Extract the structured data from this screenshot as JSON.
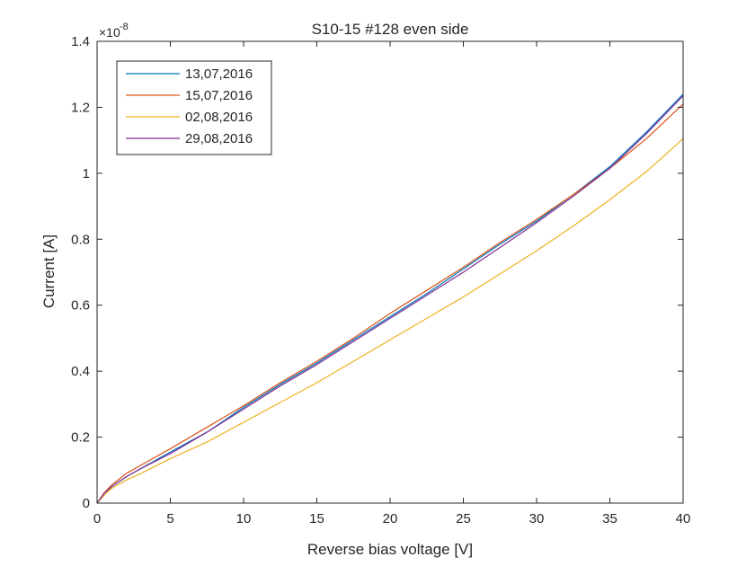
{
  "chart_data": {
    "type": "line",
    "title": "S10-15 #128 even side",
    "xlabel": "Reverse bias voltage [V]",
    "ylabel": "Current [A]",
    "y_exponent_base": "×10",
    "y_exponent_power": "-8",
    "y_scale_factor": 1e-08,
    "xlim": [
      0,
      40
    ],
    "ylim": [
      0,
      1.4
    ],
    "x_ticks": [
      0,
      5,
      10,
      15,
      20,
      25,
      30,
      35,
      40
    ],
    "x_tick_labels": [
      "0",
      "5",
      "10",
      "15",
      "20",
      "25",
      "30",
      "35",
      "40"
    ],
    "y_ticks": [
      0,
      0.2,
      0.4,
      0.6,
      0.8,
      1.0,
      1.2,
      1.4
    ],
    "y_tick_labels": [
      "0",
      "0.2",
      "0.4",
      "0.6",
      "0.8",
      "1",
      "1.2",
      "1.4"
    ],
    "grid": false,
    "legend_position": "top-left",
    "x": [
      0,
      0.5,
      1,
      2,
      3,
      5,
      7.5,
      10,
      12.5,
      15,
      17.5,
      20,
      22.5,
      25,
      27.5,
      30,
      32.5,
      35,
      37.5,
      40
    ],
    "series": [
      {
        "name": "13,07,2016",
        "color": "#0072BD",
        "values": [
          0,
          0.03,
          0.05,
          0.08,
          0.105,
          0.155,
          0.215,
          0.29,
          0.36,
          0.425,
          0.495,
          0.565,
          0.635,
          0.71,
          0.785,
          0.855,
          0.935,
          1.02,
          1.125,
          1.24
        ]
      },
      {
        "name": "15,07,2016",
        "color": "#D95319",
        "values": [
          0,
          0.032,
          0.055,
          0.09,
          0.115,
          0.165,
          0.23,
          0.295,
          0.365,
          0.43,
          0.5,
          0.575,
          0.645,
          0.715,
          0.79,
          0.86,
          0.935,
          1.015,
          1.105,
          1.21
        ]
      },
      {
        "name": "02,08,2016",
        "color": "#EDB120",
        "values": [
          0,
          0.025,
          0.045,
          0.07,
          0.09,
          0.135,
          0.185,
          0.245,
          0.305,
          0.365,
          0.43,
          0.495,
          0.56,
          0.625,
          0.695,
          0.765,
          0.84,
          0.92,
          1.005,
          1.105
        ]
      },
      {
        "name": "29,08,2016",
        "color": "#7E2F8E",
        "values": [
          0,
          0.03,
          0.05,
          0.08,
          0.105,
          0.15,
          0.215,
          0.285,
          0.355,
          0.42,
          0.49,
          0.56,
          0.63,
          0.7,
          0.775,
          0.85,
          0.93,
          1.015,
          1.12,
          1.235
        ]
      }
    ]
  }
}
